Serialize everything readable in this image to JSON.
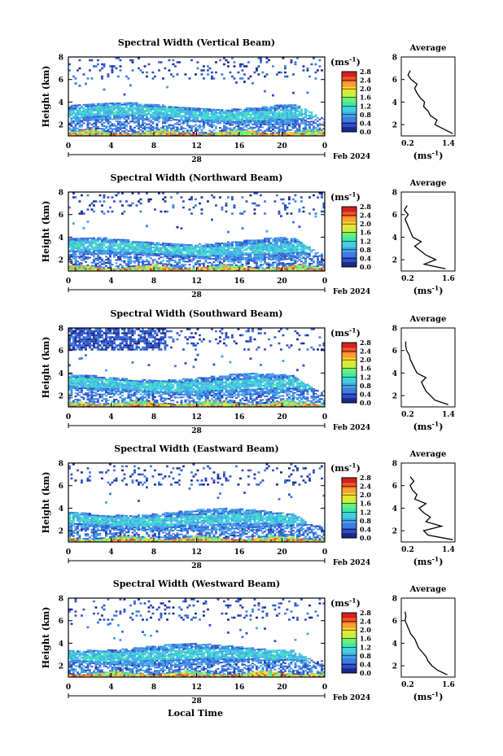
{
  "figure": {
    "xlabel_bottom": "Local Time",
    "date_label": "Feb 2024",
    "day_label": "28",
    "x_ticks": [
      "0",
      "4",
      "8",
      "12",
      "16",
      "20",
      "0"
    ],
    "y_label": "Height (km)",
    "y_ticks": [
      "2",
      "4",
      "6",
      "8"
    ],
    "colorbar_unit": "(ms",
    "colorbar_unit_exp": "-1",
    "colorbar_unit_close": ")",
    "colorbar_ticks": [
      "0.0",
      "0.4",
      "0.8",
      "1.2",
      "1.6",
      "2.0",
      "2.4",
      "2.8"
    ],
    "profile_title": "Average",
    "profile_y_ticks": [
      "2",
      "4",
      "6",
      "8"
    ],
    "profile_xlabel": "(ms",
    "profile_xlabel_exp": "-1",
    "profile_xlabel_close": ")"
  },
  "colors": {
    "colormap": [
      "#1a2a8a",
      "#2f4fc8",
      "#3f7be0",
      "#42a8e8",
      "#40d0e0",
      "#3ee8b0",
      "#6ef070",
      "#c8f040",
      "#f8e030",
      "#f8a030",
      "#f05828",
      "#d42020"
    ]
  },
  "chart_data": [
    {
      "type": "heatmap",
      "title": "Spectral Width (Vertical Beam)",
      "xlabel": "Local Time",
      "ylabel": "Height (km)",
      "xlim": [
        0,
        24
      ],
      "ylim": [
        1,
        8
      ],
      "clim": [
        0.0,
        2.8
      ],
      "profile": {
        "title": "Average",
        "xlim": [
          0.2,
          1.4
        ],
        "xticks": [
          "0.2",
          "1.4"
        ],
        "heights": [
          1.2,
          1.6,
          2.0,
          2.4,
          2.8,
          3.2,
          3.6,
          4.0,
          4.4,
          4.8,
          5.2,
          5.6,
          6.0,
          6.4,
          6.8
        ],
        "values": [
          1.35,
          1.15,
          0.95,
          1.0,
          0.85,
          0.8,
          0.7,
          0.72,
          0.62,
          0.55,
          0.5,
          0.55,
          0.42,
          0.35,
          0.4
        ]
      }
    },
    {
      "type": "heatmap",
      "title": "Spectral Width (Northward Beam)",
      "xlabel": "Local Time",
      "ylabel": "Height (km)",
      "xlim": [
        0,
        24
      ],
      "ylim": [
        1,
        8
      ],
      "clim": [
        0.0,
        2.8
      ],
      "profile": {
        "title": "Average",
        "xlim": [
          0.2,
          1.6
        ],
        "xticks": [
          "0.2",
          "1.6"
        ],
        "heights": [
          1.2,
          1.6,
          2.0,
          2.4,
          2.8,
          3.2,
          3.6,
          4.0,
          4.4,
          4.8,
          5.2,
          5.6,
          6.0,
          6.4,
          6.8
        ],
        "values": [
          1.35,
          0.8,
          1.1,
          0.85,
          0.7,
          0.55,
          0.72,
          0.5,
          0.45,
          0.4,
          0.35,
          0.3,
          0.38,
          0.28,
          0.35
        ]
      }
    },
    {
      "type": "heatmap",
      "title": "Spectral Width (Southward Beam)",
      "xlabel": "Local Time",
      "ylabel": "Height (km)",
      "xlim": [
        0,
        24
      ],
      "ylim": [
        1,
        8
      ],
      "clim": [
        0.0,
        2.8
      ],
      "profile": {
        "title": "Average",
        "xlim": [
          0.2,
          1.4
        ],
        "xticks": [
          "0.2",
          "1.4"
        ],
        "heights": [
          1.2,
          1.6,
          2.0,
          2.4,
          2.8,
          3.2,
          3.6,
          4.0,
          4.4,
          4.8,
          5.2,
          5.6,
          6.0,
          6.4,
          6.8
        ],
        "values": [
          1.25,
          0.95,
          0.85,
          0.75,
          0.7,
          0.65,
          0.75,
          0.55,
          0.5,
          0.45,
          0.4,
          0.38,
          0.32,
          0.3,
          0.3
        ]
      }
    },
    {
      "type": "heatmap",
      "title": "Spectral Width (Eastward Beam)",
      "xlabel": "Local Time",
      "ylabel": "Height (km)",
      "xlim": [
        0,
        24
      ],
      "ylim": [
        1,
        8
      ],
      "clim": [
        0.0,
        2.8
      ],
      "profile": {
        "title": "Average",
        "xlim": [
          0.2,
          1.4
        ],
        "xticks": [
          "0.2",
          "1.4"
        ],
        "heights": [
          1.2,
          1.6,
          2.0,
          2.4,
          2.8,
          3.2,
          3.6,
          4.0,
          4.4,
          4.8,
          5.2,
          5.6,
          6.0,
          6.4,
          6.8
        ],
        "values": [
          1.35,
          0.8,
          0.7,
          1.1,
          0.75,
          0.85,
          0.7,
          0.6,
          0.75,
          0.5,
          0.55,
          0.45,
          0.4,
          0.48,
          0.4
        ]
      }
    },
    {
      "type": "heatmap",
      "title": "Spectral Width (Westward Beam)",
      "xlabel": "Local Time",
      "ylabel": "Height (km)",
      "xlim": [
        0,
        24
      ],
      "ylim": [
        1,
        8
      ],
      "clim": [
        0.0,
        2.8
      ],
      "profile": {
        "title": "Average",
        "xlim": [
          0.2,
          1.6
        ],
        "xticks": [
          "0.2",
          "1.6"
        ],
        "heights": [
          1.2,
          1.6,
          2.0,
          2.4,
          2.8,
          3.2,
          3.6,
          4.0,
          4.4,
          4.8,
          5.2,
          5.6,
          6.0,
          6.4,
          6.8
        ],
        "values": [
          1.4,
          1.15,
          1.0,
          0.9,
          0.85,
          0.75,
          0.65,
          0.6,
          0.55,
          0.45,
          0.4,
          0.35,
          0.3,
          0.32,
          0.3
        ]
      }
    }
  ]
}
